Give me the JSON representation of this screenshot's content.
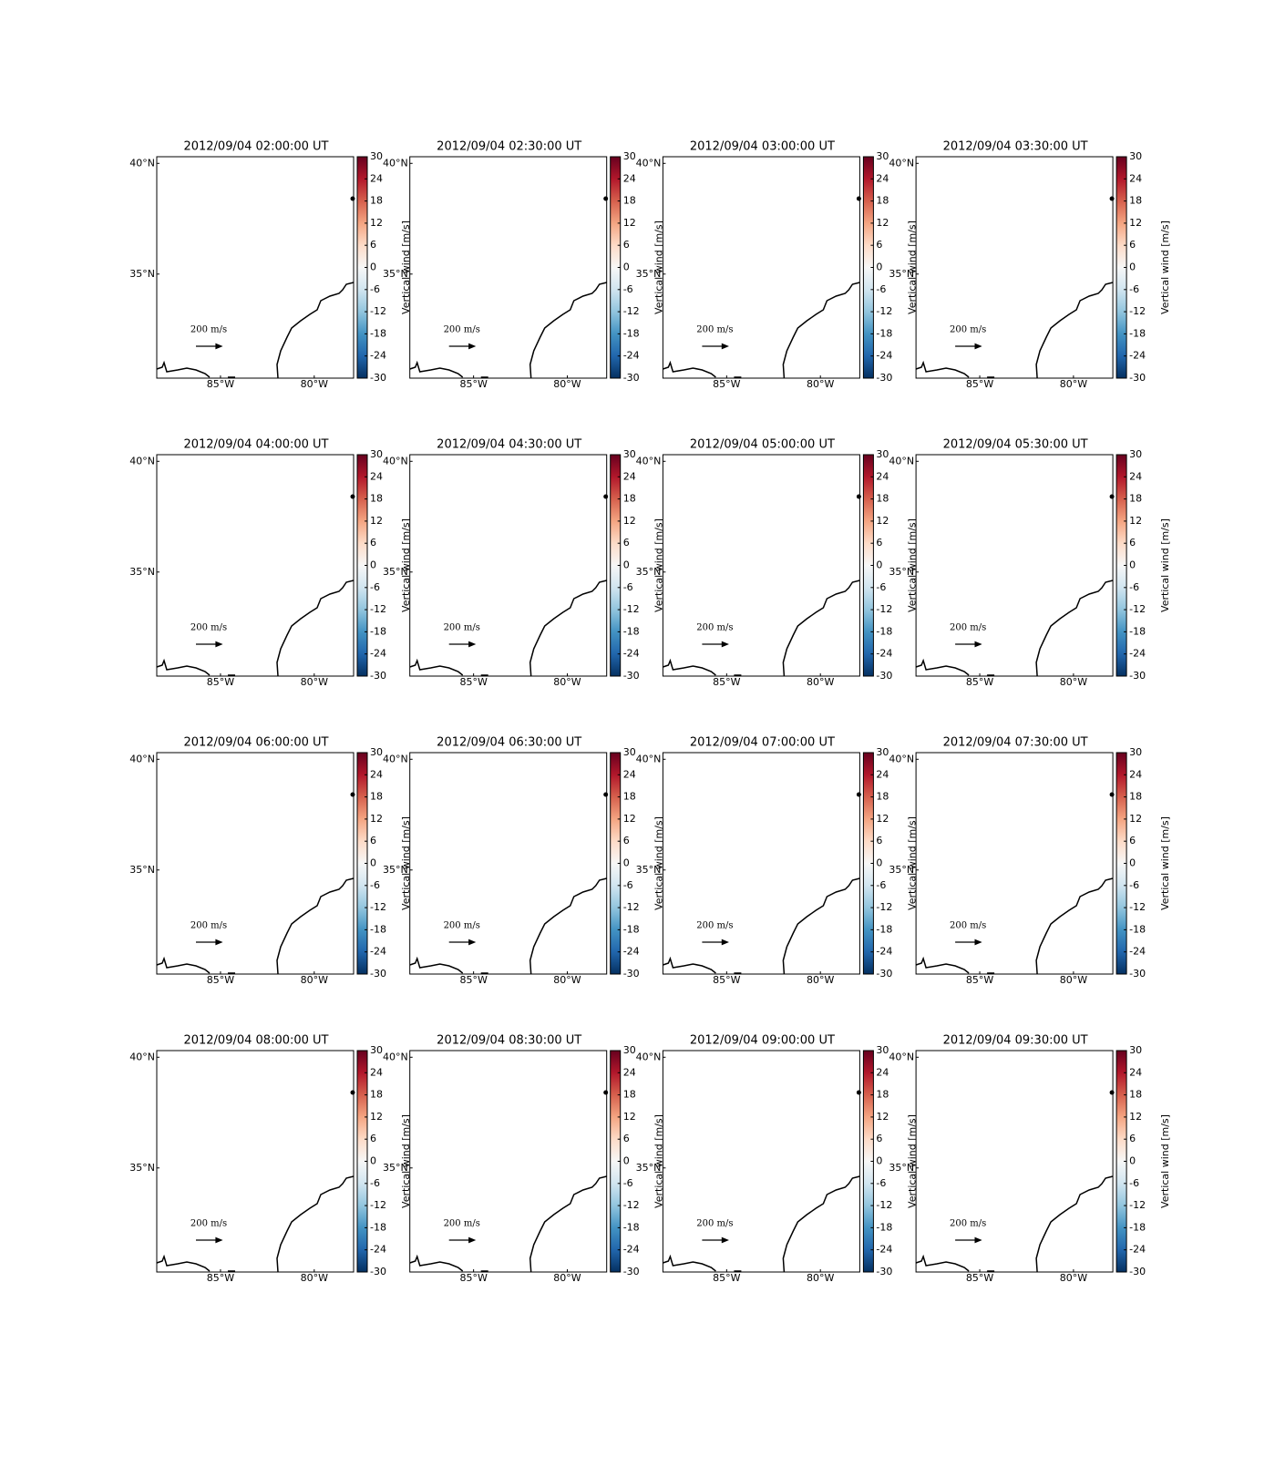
{
  "chart_data": [
    {
      "type": "map",
      "title": "2012/09/04 02:00:00 UT",
      "xlim": [
        -88.4,
        -77.9
      ],
      "ylim": [
        30.3,
        40.3
      ],
      "xticks": [
        {
          "value": -85,
          "label": "85°W"
        },
        {
          "value": -80,
          "label": "80°W"
        }
      ],
      "yticks": [
        {
          "value": 35,
          "label": "35°N"
        },
        {
          "value": 40,
          "label": "40°N"
        }
      ],
      "clim": [
        -30,
        30
      ],
      "cticks": [
        -30,
        -24,
        -18,
        -12,
        -6,
        0,
        6,
        12,
        18,
        24,
        30
      ],
      "colorbar_label": "Vertical wind [m/s]",
      "quiver_key": {
        "value": 200,
        "label": "200 m/s"
      }
    },
    {
      "type": "map",
      "title": "2012/09/04 02:30:00 UT",
      "xlim": [
        -88.4,
        -77.9
      ],
      "ylim": [
        30.3,
        40.3
      ],
      "xticks": [
        {
          "value": -85,
          "label": "85°W"
        },
        {
          "value": -80,
          "label": "80°W"
        }
      ],
      "yticks": [
        {
          "value": 35,
          "label": "35°N"
        },
        {
          "value": 40,
          "label": "40°N"
        }
      ],
      "clim": [
        -30,
        30
      ],
      "cticks": [
        -30,
        -24,
        -18,
        -12,
        -6,
        0,
        6,
        12,
        18,
        24,
        30
      ],
      "colorbar_label": "Vertical wind [m/s]",
      "quiver_key": {
        "value": 200,
        "label": "200 m/s"
      }
    },
    {
      "type": "map",
      "title": "2012/09/04 03:00:00 UT",
      "xlim": [
        -88.4,
        -77.9
      ],
      "ylim": [
        30.3,
        40.3
      ],
      "xticks": [
        {
          "value": -85,
          "label": "85°W"
        },
        {
          "value": -80,
          "label": "80°W"
        }
      ],
      "yticks": [
        {
          "value": 35,
          "label": "35°N"
        },
        {
          "value": 40,
          "label": "40°N"
        }
      ],
      "clim": [
        -30,
        30
      ],
      "cticks": [
        -30,
        -24,
        -18,
        -12,
        -6,
        0,
        6,
        12,
        18,
        24,
        30
      ],
      "colorbar_label": "Vertical wind [m/s]",
      "quiver_key": {
        "value": 200,
        "label": "200 m/s"
      }
    },
    {
      "type": "map",
      "title": "2012/09/04 03:30:00 UT",
      "xlim": [
        -88.4,
        -77.9
      ],
      "ylim": [
        30.3,
        40.3
      ],
      "xticks": [
        {
          "value": -85,
          "label": "85°W"
        },
        {
          "value": -80,
          "label": "80°W"
        }
      ],
      "yticks": [
        {
          "value": 35,
          "label": "35°N"
        },
        {
          "value": 40,
          "label": "40°N"
        }
      ],
      "clim": [
        -30,
        30
      ],
      "cticks": [
        -30,
        -24,
        -18,
        -12,
        -6,
        0,
        6,
        12,
        18,
        24,
        30
      ],
      "colorbar_label": "Vertical wind [m/s]",
      "quiver_key": {
        "value": 200,
        "label": "200 m/s"
      }
    },
    {
      "type": "map",
      "title": "2012/09/04 04:00:00 UT",
      "xlim": [
        -88.4,
        -77.9
      ],
      "ylim": [
        30.3,
        40.3
      ],
      "xticks": [
        {
          "value": -85,
          "label": "85°W"
        },
        {
          "value": -80,
          "label": "80°W"
        }
      ],
      "yticks": [
        {
          "value": 35,
          "label": "35°N"
        },
        {
          "value": 40,
          "label": "40°N"
        }
      ],
      "clim": [
        -30,
        30
      ],
      "cticks": [
        -30,
        -24,
        -18,
        -12,
        -6,
        0,
        6,
        12,
        18,
        24,
        30
      ],
      "colorbar_label": "Vertical wind [m/s]",
      "quiver_key": {
        "value": 200,
        "label": "200 m/s"
      }
    },
    {
      "type": "map",
      "title": "2012/09/04 04:30:00 UT",
      "xlim": [
        -88.4,
        -77.9
      ],
      "ylim": [
        30.3,
        40.3
      ],
      "xticks": [
        {
          "value": -85,
          "label": "85°W"
        },
        {
          "value": -80,
          "label": "80°W"
        }
      ],
      "yticks": [
        {
          "value": 35,
          "label": "35°N"
        },
        {
          "value": 40,
          "label": "40°N"
        }
      ],
      "clim": [
        -30,
        30
      ],
      "cticks": [
        -30,
        -24,
        -18,
        -12,
        -6,
        0,
        6,
        12,
        18,
        24,
        30
      ],
      "colorbar_label": "Vertical wind [m/s]",
      "quiver_key": {
        "value": 200,
        "label": "200 m/s"
      }
    },
    {
      "type": "map",
      "title": "2012/09/04 05:00:00 UT",
      "xlim": [
        -88.4,
        -77.9
      ],
      "ylim": [
        30.3,
        40.3
      ],
      "xticks": [
        {
          "value": -85,
          "label": "85°W"
        },
        {
          "value": -80,
          "label": "80°W"
        }
      ],
      "yticks": [
        {
          "value": 35,
          "label": "35°N"
        },
        {
          "value": 40,
          "label": "40°N"
        }
      ],
      "clim": [
        -30,
        30
      ],
      "cticks": [
        -30,
        -24,
        -18,
        -12,
        -6,
        0,
        6,
        12,
        18,
        24,
        30
      ],
      "colorbar_label": "Vertical wind [m/s]",
      "quiver_key": {
        "value": 200,
        "label": "200 m/s"
      }
    },
    {
      "type": "map",
      "title": "2012/09/04 05:30:00 UT",
      "xlim": [
        -88.4,
        -77.9
      ],
      "ylim": [
        30.3,
        40.3
      ],
      "xticks": [
        {
          "value": -85,
          "label": "85°W"
        },
        {
          "value": -80,
          "label": "80°W"
        }
      ],
      "yticks": [
        {
          "value": 35,
          "label": "35°N"
        },
        {
          "value": 40,
          "label": "40°N"
        }
      ],
      "clim": [
        -30,
        30
      ],
      "cticks": [
        -30,
        -24,
        -18,
        -12,
        -6,
        0,
        6,
        12,
        18,
        24,
        30
      ],
      "colorbar_label": "Vertical wind [m/s]",
      "quiver_key": {
        "value": 200,
        "label": "200 m/s"
      }
    },
    {
      "type": "map",
      "title": "2012/09/04 06:00:00 UT",
      "xlim": [
        -88.4,
        -77.9
      ],
      "ylim": [
        30.3,
        40.3
      ],
      "xticks": [
        {
          "value": -85,
          "label": "85°W"
        },
        {
          "value": -80,
          "label": "80°W"
        }
      ],
      "yticks": [
        {
          "value": 35,
          "label": "35°N"
        },
        {
          "value": 40,
          "label": "40°N"
        }
      ],
      "clim": [
        -30,
        30
      ],
      "cticks": [
        -30,
        -24,
        -18,
        -12,
        -6,
        0,
        6,
        12,
        18,
        24,
        30
      ],
      "colorbar_label": "Vertical wind [m/s]",
      "quiver_key": {
        "value": 200,
        "label": "200 m/s"
      }
    },
    {
      "type": "map",
      "title": "2012/09/04 06:30:00 UT",
      "xlim": [
        -88.4,
        -77.9
      ],
      "ylim": [
        30.3,
        40.3
      ],
      "xticks": [
        {
          "value": -85,
          "label": "85°W"
        },
        {
          "value": -80,
          "label": "80°W"
        }
      ],
      "yticks": [
        {
          "value": 35,
          "label": "35°N"
        },
        {
          "value": 40,
          "label": "40°N"
        }
      ],
      "clim": [
        -30,
        30
      ],
      "cticks": [
        -30,
        -24,
        -18,
        -12,
        -6,
        0,
        6,
        12,
        18,
        24,
        30
      ],
      "colorbar_label": "Vertical wind [m/s]",
      "quiver_key": {
        "value": 200,
        "label": "200 m/s"
      }
    },
    {
      "type": "map",
      "title": "2012/09/04 07:00:00 UT",
      "xlim": [
        -88.4,
        -77.9
      ],
      "ylim": [
        30.3,
        40.3
      ],
      "xticks": [
        {
          "value": -85,
          "label": "85°W"
        },
        {
          "value": -80,
          "label": "80°W"
        }
      ],
      "yticks": [
        {
          "value": 35,
          "label": "35°N"
        },
        {
          "value": 40,
          "label": "40°N"
        }
      ],
      "clim": [
        -30,
        30
      ],
      "cticks": [
        -30,
        -24,
        -18,
        -12,
        -6,
        0,
        6,
        12,
        18,
        24,
        30
      ],
      "colorbar_label": "Vertical wind [m/s]",
      "quiver_key": {
        "value": 200,
        "label": "200 m/s"
      }
    },
    {
      "type": "map",
      "title": "2012/09/04 07:30:00 UT",
      "xlim": [
        -88.4,
        -77.9
      ],
      "ylim": [
        30.3,
        40.3
      ],
      "xticks": [
        {
          "value": -85,
          "label": "85°W"
        },
        {
          "value": -80,
          "label": "80°W"
        }
      ],
      "yticks": [
        {
          "value": 35,
          "label": "35°N"
        },
        {
          "value": 40,
          "label": "40°N"
        }
      ],
      "clim": [
        -30,
        30
      ],
      "cticks": [
        -30,
        -24,
        -18,
        -12,
        -6,
        0,
        6,
        12,
        18,
        24,
        30
      ],
      "colorbar_label": "Vertical wind [m/s]",
      "quiver_key": {
        "value": 200,
        "label": "200 m/s"
      }
    },
    {
      "type": "map",
      "title": "2012/09/04 08:00:00 UT",
      "xlim": [
        -88.4,
        -77.9
      ],
      "ylim": [
        30.3,
        40.3
      ],
      "xticks": [
        {
          "value": -85,
          "label": "85°W"
        },
        {
          "value": -80,
          "label": "80°W"
        }
      ],
      "yticks": [
        {
          "value": 35,
          "label": "35°N"
        },
        {
          "value": 40,
          "label": "40°N"
        }
      ],
      "clim": [
        -30,
        30
      ],
      "cticks": [
        -30,
        -24,
        -18,
        -12,
        -6,
        0,
        6,
        12,
        18,
        24,
        30
      ],
      "colorbar_label": "Vertical wind [m/s]",
      "quiver_key": {
        "value": 200,
        "label": "200 m/s"
      }
    },
    {
      "type": "map",
      "title": "2012/09/04 08:30:00 UT",
      "xlim": [
        -88.4,
        -77.9
      ],
      "ylim": [
        30.3,
        40.3
      ],
      "xticks": [
        {
          "value": -85,
          "label": "85°W"
        },
        {
          "value": -80,
          "label": "80°W"
        }
      ],
      "yticks": [
        {
          "value": 35,
          "label": "35°N"
        },
        {
          "value": 40,
          "label": "40°N"
        }
      ],
      "clim": [
        -30,
        30
      ],
      "cticks": [
        -30,
        -24,
        -18,
        -12,
        -6,
        0,
        6,
        12,
        18,
        24,
        30
      ],
      "colorbar_label": "Vertical wind [m/s]",
      "quiver_key": {
        "value": 200,
        "label": "200 m/s"
      }
    },
    {
      "type": "map",
      "title": "2012/09/04 09:00:00 UT",
      "xlim": [
        -88.4,
        -77.9
      ],
      "ylim": [
        30.3,
        40.3
      ],
      "xticks": [
        {
          "value": -85,
          "label": "85°W"
        },
        {
          "value": -80,
          "label": "80°W"
        }
      ],
      "yticks": [
        {
          "value": 35,
          "label": "35°N"
        },
        {
          "value": 40,
          "label": "40°N"
        }
      ],
      "clim": [
        -30,
        30
      ],
      "cticks": [
        -30,
        -24,
        -18,
        -12,
        -6,
        0,
        6,
        12,
        18,
        24,
        30
      ],
      "colorbar_label": "Vertical wind [m/s]",
      "quiver_key": {
        "value": 200,
        "label": "200 m/s"
      }
    },
    {
      "type": "map",
      "title": "2012/09/04 09:30:00 UT",
      "xlim": [
        -88.4,
        -77.9
      ],
      "ylim": [
        30.3,
        40.3
      ],
      "xticks": [
        {
          "value": -85,
          "label": "85°W"
        },
        {
          "value": -80,
          "label": "80°W"
        }
      ],
      "yticks": [
        {
          "value": 35,
          "label": "35°N"
        },
        {
          "value": 40,
          "label": "40°N"
        }
      ],
      "clim": [
        -30,
        30
      ],
      "cticks": [
        -30,
        -24,
        -18,
        -12,
        -6,
        0,
        6,
        12,
        18,
        24,
        30
      ],
      "colorbar_label": "Vertical wind [m/s]",
      "quiver_key": {
        "value": 200,
        "label": "200 m/s"
      }
    }
  ]
}
